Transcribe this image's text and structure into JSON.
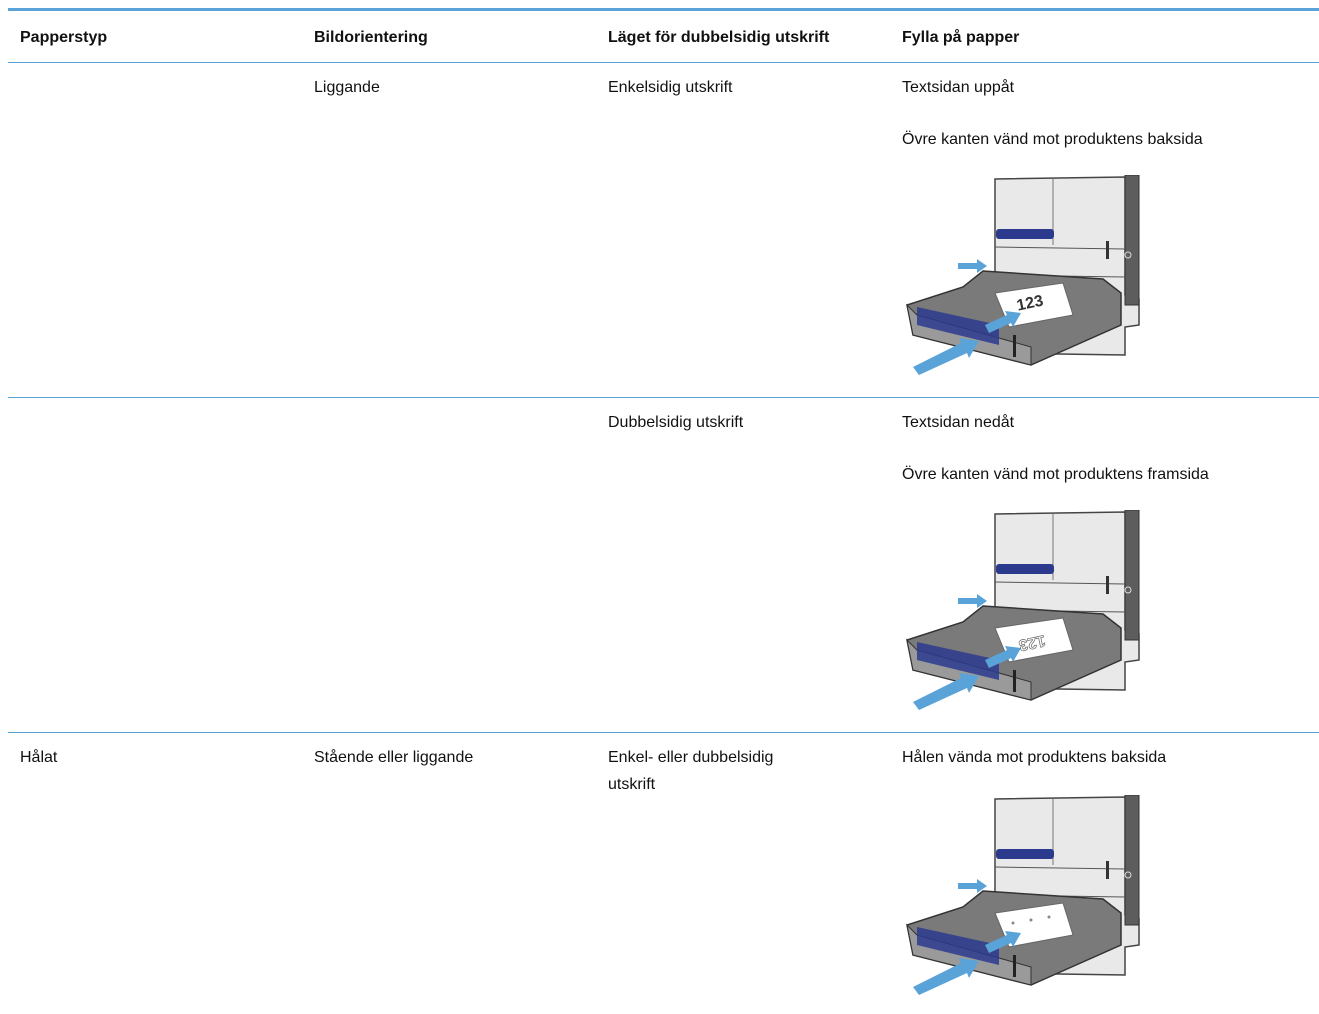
{
  "table": {
    "headers": [
      "Papperstyp",
      "Bildorientering",
      "Läget för dubbelsidig utskrift",
      "Fylla på papper"
    ],
    "rows": [
      {
        "orientation": "Liggande",
        "duplex": "Enkelsidig utskrift",
        "loading": [
          "Textsidan uppåt",
          "Övre kanten vänd mot produktens baksida"
        ],
        "image_text": "123"
      },
      {
        "duplex": "Dubbelsidig utskrift",
        "loading": [
          "Textsidan nedåt",
          "Övre kanten vänd mot produktens framsida"
        ],
        "image_text": "123"
      },
      {
        "paper": "Hålat",
        "orientation": "Stående eller liggande",
        "duplex": "Enkel- eller dubbelsidig utskrift",
        "loading": [
          "Hålen vända mot produktens baksida"
        ]
      }
    ]
  }
}
